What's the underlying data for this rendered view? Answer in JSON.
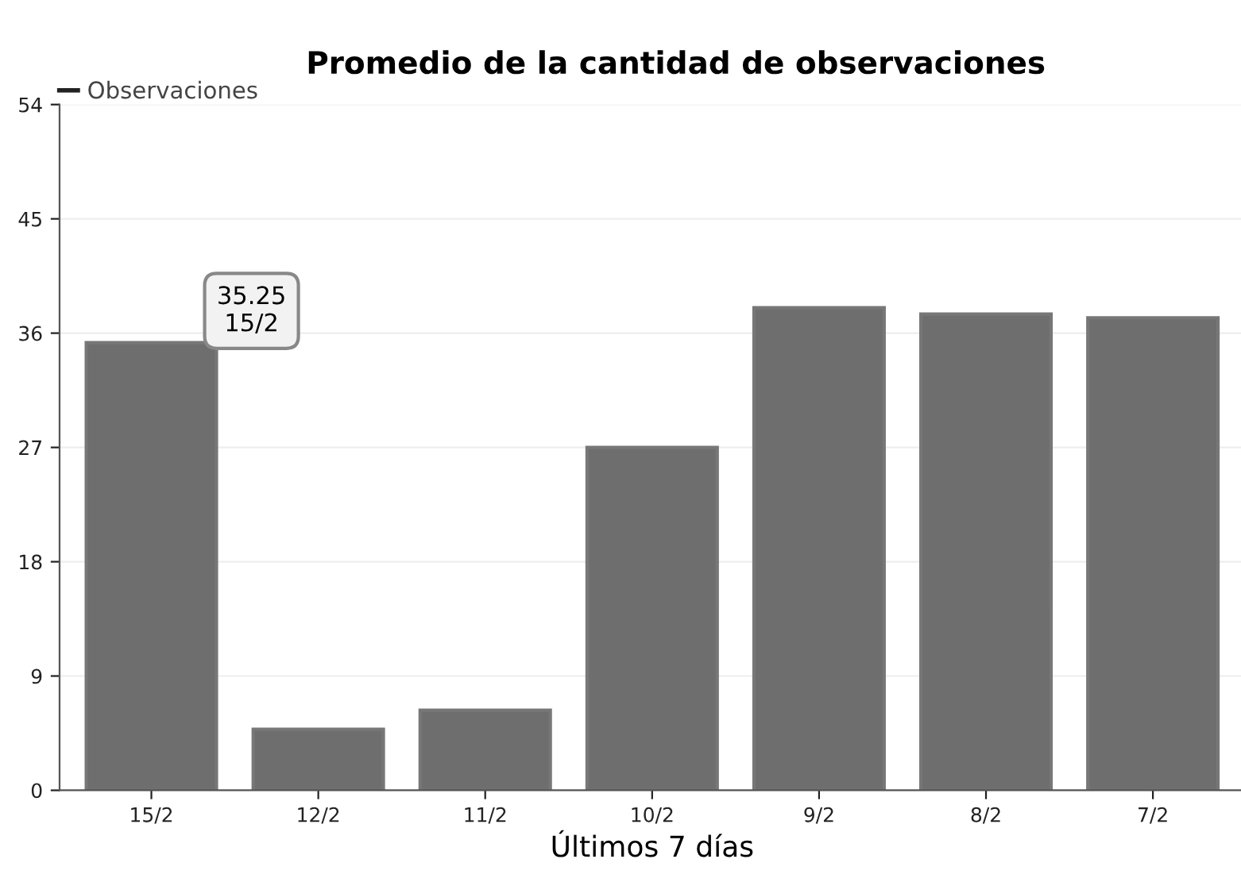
{
  "chart_data": {
    "type": "bar",
    "title": "Promedio de la cantidad de observaciones",
    "xlabel": "Últimos 7 días",
    "categories": [
      "15/2",
      "12/2",
      "11/2",
      "10/2",
      "9/2",
      "8/2",
      "7/2"
    ],
    "series": [
      {
        "name": "Observaciones",
        "color": "#6e6e6e",
        "values": [
          35.25,
          4.8,
          6.3,
          27,
          38,
          37.5,
          37.2
        ]
      }
    ],
    "ylim": [
      0,
      54
    ],
    "yticks": [
      0,
      9,
      18,
      27,
      36,
      45,
      54
    ],
    "grid": "y",
    "legend": "top left",
    "annotations": [
      {
        "text": "35.25\n15/2",
        "x": "15/2",
        "y": 35.25
      }
    ]
  }
}
